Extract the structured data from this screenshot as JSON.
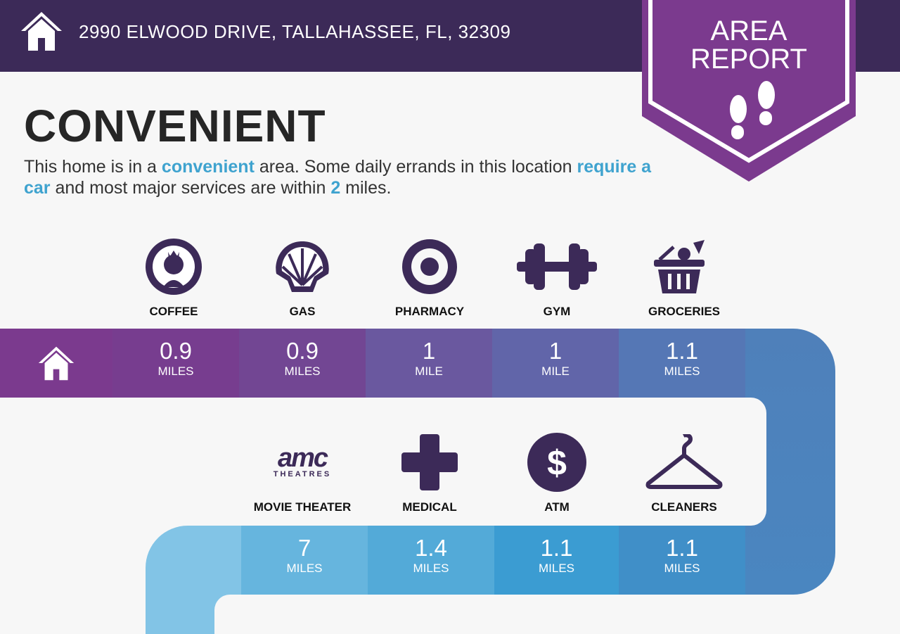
{
  "header": {
    "address": "2990 ELWOOD DRIVE, TALLAHASSEE, FL, 32309",
    "icon": "home-icon"
  },
  "badge": {
    "line1": "AREA",
    "line2": "REPORT",
    "icon": "footprints-icon"
  },
  "title": "CONVENIENT",
  "description": {
    "p1": "This home is in a ",
    "h1": "convenient",
    "p2": " area. Some daily errands in this location ",
    "h2": "require a car",
    "p3": " and most major services are within ",
    "h3": "2",
    "p4": " miles."
  },
  "colors": {
    "header": "#3c2a58",
    "badge": "#7b3a8e",
    "highlight": "#3fa3cf"
  },
  "row1": [
    {
      "label": "COFFEE",
      "icon": "starbucks-icon",
      "value": "0.9",
      "unit": "MILES",
      "color": "#773d8f"
    },
    {
      "label": "GAS",
      "icon": "shell-icon",
      "value": "0.9",
      "unit": "MILES",
      "color": "#724693"
    },
    {
      "label": "PHARMACY",
      "icon": "target-icon",
      "value": "1",
      "unit": "MILE",
      "color": "#6a589f"
    },
    {
      "label": "GYM",
      "icon": "dumbbell-icon",
      "value": "1",
      "unit": "MILE",
      "color": "#6165a9"
    },
    {
      "label": "GROCERIES",
      "icon": "basket-icon",
      "value": "1.1",
      "unit": "MILES",
      "color": "#5577b5"
    }
  ],
  "row2": [
    {
      "label": "MOVIE THEATER",
      "icon": "amc-theatres-icon",
      "logo": "amc",
      "logo_sub": "THEATRES",
      "value": "7",
      "unit": "MILES",
      "color": "#66b5de"
    },
    {
      "label": "MEDICAL",
      "icon": "medical-cross-icon",
      "value": "1.4",
      "unit": "MILES",
      "color": "#53aad8"
    },
    {
      "label": "ATM",
      "icon": "dollar-icon",
      "value": "1.1",
      "unit": "MILES",
      "color": "#3b9cd2"
    },
    {
      "label": "CLEANERS",
      "icon": "hanger-icon",
      "value": "1.1",
      "unit": "MILES",
      "color": "#408fc8"
    }
  ]
}
